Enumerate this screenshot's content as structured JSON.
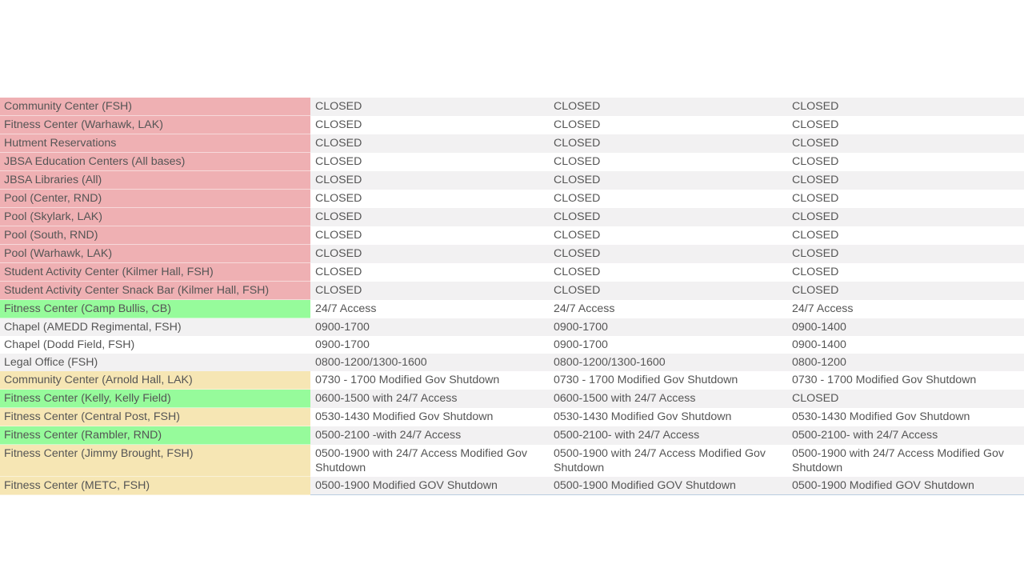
{
  "table": {
    "rows": [
      {
        "name": "Community Center (FSH)",
        "color": "red",
        "c1": "CLOSED",
        "c2": "CLOSED",
        "c3": "CLOSED"
      },
      {
        "name": "Fitness Center (Warhawk, LAK)",
        "color": "red",
        "c1": "CLOSED",
        "c2": "CLOSED",
        "c3": "CLOSED"
      },
      {
        "name": "Hutment Reservations",
        "color": "red",
        "c1": "CLOSED",
        "c2": "CLOSED",
        "c3": "CLOSED"
      },
      {
        "name": "JBSA Education Centers (All bases)",
        "color": "red",
        "c1": "CLOSED",
        "c2": "CLOSED",
        "c3": "CLOSED"
      },
      {
        "name": "JBSA Libraries (All)",
        "color": "red",
        "c1": "CLOSED",
        "c2": "CLOSED",
        "c3": "CLOSED"
      },
      {
        "name": "Pool (Center, RND)",
        "color": "red",
        "c1": "CLOSED",
        "c2": "CLOSED",
        "c3": "CLOSED"
      },
      {
        "name": "Pool (Skylark, LAK)",
        "color": "red",
        "c1": "CLOSED",
        "c2": "CLOSED",
        "c3": "CLOSED"
      },
      {
        "name": "Pool (South, RND)",
        "color": "red",
        "c1": "CLOSED",
        "c2": "CLOSED",
        "c3": "CLOSED"
      },
      {
        "name": "Pool (Warhawk, LAK)",
        "color": "red",
        "c1": "CLOSED",
        "c2": "CLOSED",
        "c3": "CLOSED"
      },
      {
        "name": "Student Activity Center (Kilmer Hall, FSH)",
        "color": "red",
        "c1": "CLOSED",
        "c2": "CLOSED",
        "c3": "CLOSED"
      },
      {
        "name": "Student Activity Center Snack Bar (Kilmer Hall, FSH)",
        "color": "red",
        "c1": "CLOSED",
        "c2": "CLOSED",
        "c3": "CLOSED"
      },
      {
        "name": "Fitness Center (Camp Bullis, CB)",
        "color": "green",
        "c1": "24/7 Access",
        "c2": "24/7 Access",
        "c3": "24/7 Access"
      },
      {
        "name": "Chapel (AMEDD Regimental, FSH)",
        "color": "plain",
        "c1": "0900-1700",
        "c2": "0900-1700",
        "c3": "0900-1400"
      },
      {
        "name": "Chapel (Dodd Field, FSH)",
        "color": "plain",
        "c1": "0900-1700",
        "c2": "0900-1700",
        "c3": "0900-1400"
      },
      {
        "name": "Legal Office (FSH)",
        "color": "plain",
        "c1": "0800-1200/1300-1600",
        "c2": "0800-1200/1300-1600",
        "c3": "0800-1200"
      },
      {
        "name": "Community Center (Arnold Hall, LAK)",
        "color": "yellow",
        "c1": "0730 - 1700 Modified Gov Shutdown",
        "c2": "0730 - 1700 Modified Gov Shutdown",
        "c3": "0730 - 1700 Modified Gov Shutdown"
      },
      {
        "name": "Fitness Center (Kelly, Kelly Field)",
        "color": "green",
        "c1": "0600-1500 with 24/7 Access",
        "c2": "0600-1500 with 24/7 Access",
        "c3": "CLOSED"
      },
      {
        "name": "Fitness Center (Central Post, FSH)",
        "color": "yellow",
        "c1": "0530-1430 Modified Gov Shutdown",
        "c2": "0530-1430 Modified Gov Shutdown",
        "c3": "0530-1430 Modified Gov Shutdown"
      },
      {
        "name": "Fitness Center (Rambler, RND)",
        "color": "green",
        "c1": "0500-2100 -with 24/7 Access",
        "c2": "0500-2100- with 24/7 Access",
        "c3": "0500-2100- with 24/7 Access"
      },
      {
        "name": "Fitness Center (Jimmy Brought, FSH)",
        "color": "yellow",
        "c1": "0500-1900 with 24/7 Access Modified Gov Shutdown",
        "c2": "0500-1900 with 24/7 Access Modified Gov Shutdown",
        "c3": "0500-1900 with 24/7 Access Modified Gov Shutdown"
      },
      {
        "name": "Fitness Center (METC, FSH)",
        "color": "yellow",
        "c1": "0500-1900 Modified GOV Shutdown",
        "c2": "0500-1900 Modified GOV Shutdown",
        "c3": "0500-1900 Modified GOV Shutdown"
      }
    ],
    "colors": {
      "red": "#efb0b3",
      "green": "#96fb9b",
      "yellow": "#f6e6b4",
      "stripe": "#f2f1f2",
      "text": "#555555"
    }
  }
}
